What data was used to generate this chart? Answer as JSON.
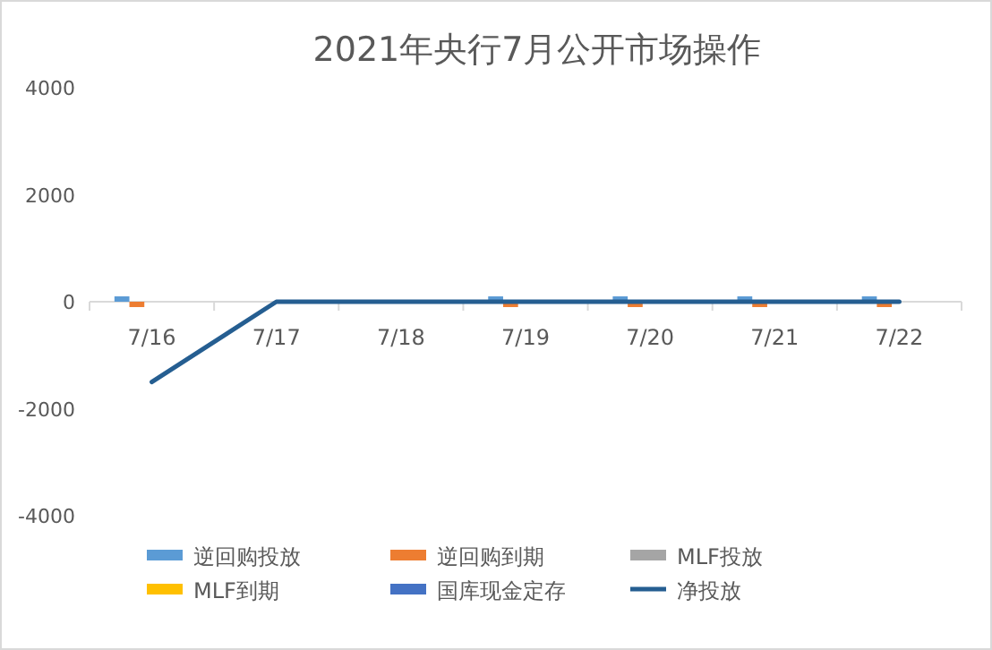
{
  "chart_data": {
    "type": "bar",
    "title": "2021年央行7月公开市场操作",
    "categories": [
      "7/16",
      "7/17",
      "7/18",
      "7/19",
      "7/20",
      "7/21",
      "7/22"
    ],
    "series": [
      {
        "name": "逆回购投放",
        "color": "#5b9bd5",
        "values": [
          100,
          null,
          null,
          100,
          100,
          100,
          100
        ]
      },
      {
        "name": "逆回购到期",
        "color": "#ed7d31",
        "values": [
          -100,
          null,
          null,
          -100,
          -100,
          -100,
          -100
        ]
      },
      {
        "name": "MLF投放",
        "color": "#a5a5a5",
        "values": [
          null,
          null,
          null,
          null,
          null,
          null,
          null
        ]
      },
      {
        "name": "MLF到期",
        "color": "#ffc000",
        "values": [
          null,
          null,
          null,
          null,
          null,
          null,
          null
        ]
      },
      {
        "name": "国库现金定存",
        "color": "#4472c4",
        "values": [
          null,
          null,
          null,
          null,
          null,
          null,
          null
        ]
      },
      {
        "name": "净投放",
        "color": "#255e91",
        "type": "line",
        "values": [
          -1500,
          0,
          0,
          0,
          0,
          0,
          0
        ]
      }
    ],
    "ylim": [
      -4000,
      4000
    ],
    "yticks": [
      -4000,
      -2000,
      0,
      2000,
      4000
    ],
    "grid": false,
    "legend": "bottom"
  }
}
